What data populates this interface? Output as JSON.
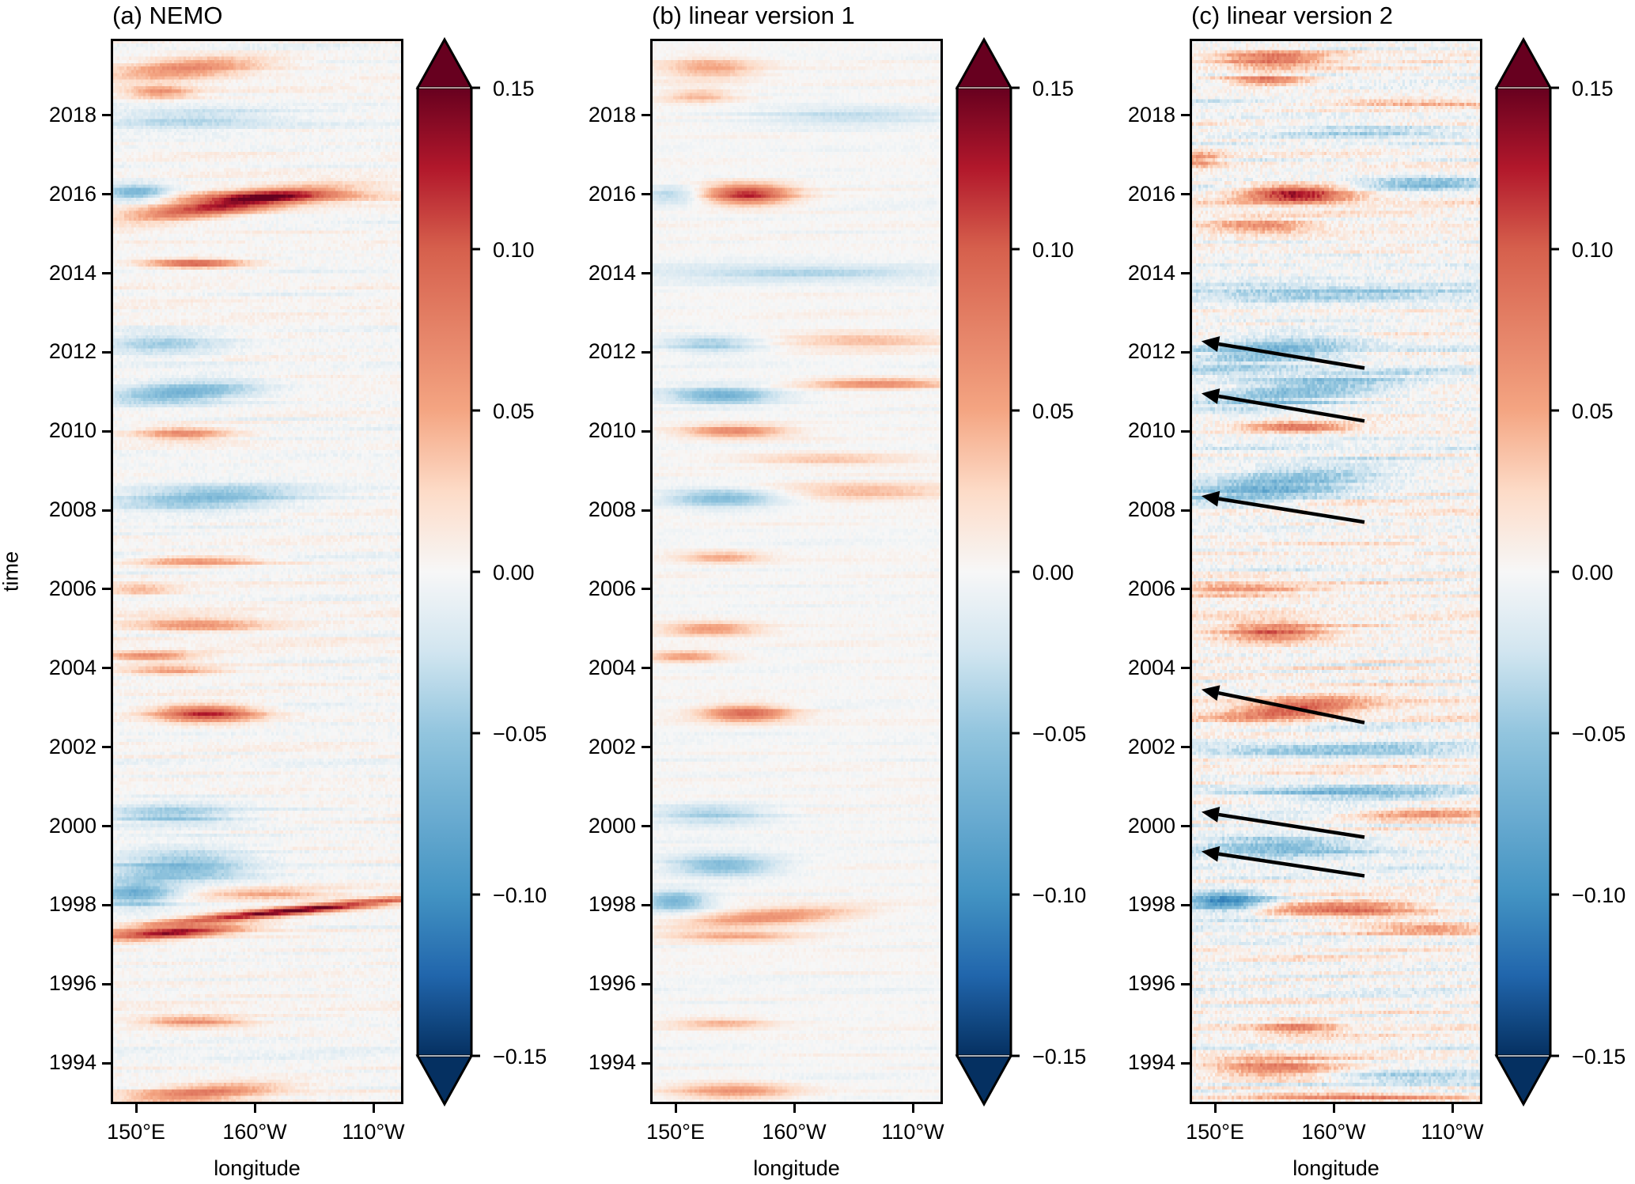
{
  "chart_data": {
    "type": "heatmap",
    "description": "Hovmoller diagrams (time vs longitude) of an anomaly field along the equatorial Pacific",
    "ylabel": "time",
    "xlabel": "longitude",
    "ylim": [
      1993.0,
      2019.9
    ],
    "xlim_deg_east": [
      140,
      262
    ],
    "yticks": [
      1994,
      1996,
      1998,
      2000,
      2002,
      2004,
      2006,
      2008,
      2010,
      2012,
      2014,
      2016,
      2018
    ],
    "ytick_labels": [
      "1994",
      "1996",
      "1998",
      "2000",
      "2002",
      "2004",
      "2006",
      "2008",
      "2010",
      "2012",
      "2014",
      "2016",
      "2018"
    ],
    "xticks_deg_east": [
      150,
      200,
      250
    ],
    "xtick_labels": [
      "150°E",
      "160°W",
      "110°W"
    ],
    "colorbar": {
      "colormap": "RdBu_r",
      "vmin": -0.15,
      "vmax": 0.15,
      "extend": "both",
      "ticks": [
        0.15,
        0.1,
        0.05,
        0.0,
        -0.05,
        -0.1,
        -0.15
      ],
      "tick_labels": [
        "0.15",
        "0.10",
        "0.05",
        "0.00",
        "−0.05",
        "−0.10",
        "−0.15"
      ],
      "stops": [
        [
          -0.15,
          "#053061"
        ],
        [
          -0.125,
          "#2166ac"
        ],
        [
          -0.1,
          "#4393c3"
        ],
        [
          -0.05,
          "#92c5de"
        ],
        [
          -0.025,
          "#d1e5f0"
        ],
        [
          0.0,
          "#f7f7f7"
        ],
        [
          0.025,
          "#fddbc7"
        ],
        [
          0.05,
          "#f4a582"
        ],
        [
          0.1,
          "#d6604d"
        ],
        [
          0.125,
          "#b2182b"
        ],
        [
          0.15,
          "#67001f"
        ]
      ]
    },
    "panels": [
      {
        "id": "a",
        "title": "(a) NEMO",
        "noise": 0.012,
        "seed": 11,
        "features": [
          {
            "year": 2019.2,
            "lon": 172,
            "amp": 0.07,
            "dlon": 22,
            "dyr": 0.18,
            "tilt": 0.004
          },
          {
            "year": 2018.6,
            "lon": 160,
            "amp": 0.06,
            "dlon": 10,
            "dyr": 0.12,
            "tilt": 0.0
          },
          {
            "year": 2017.9,
            "lon": 175,
            "amp": -0.035,
            "dlon": 25,
            "dyr": 0.2,
            "tilt": 0.0
          },
          {
            "year": 2016.05,
            "lon": 150,
            "amp": -0.07,
            "dlon": 10,
            "dyr": 0.15,
            "tilt": 0.0
          },
          {
            "year": 2015.75,
            "lon": 190,
            "amp": 0.13,
            "dlon": 28,
            "dyr": 0.18,
            "tilt": 0.008
          },
          {
            "year": 2015.95,
            "lon": 215,
            "amp": 0.05,
            "dlon": 30,
            "dyr": 0.1,
            "tilt": 0.0
          },
          {
            "year": 2014.25,
            "lon": 175,
            "amp": 0.1,
            "dlon": 14,
            "dyr": 0.08,
            "tilt": 0.0
          },
          {
            "year": 2012.2,
            "lon": 160,
            "amp": -0.04,
            "dlon": 18,
            "dyr": 0.2,
            "tilt": 0.0
          },
          {
            "year": 2011.0,
            "lon": 170,
            "amp": -0.07,
            "dlon": 22,
            "dyr": 0.2,
            "tilt": 0.004
          },
          {
            "year": 2009.95,
            "lon": 170,
            "amp": 0.07,
            "dlon": 14,
            "dyr": 0.12,
            "tilt": 0.0
          },
          {
            "year": 2008.3,
            "lon": 180,
            "amp": -0.06,
            "dlon": 28,
            "dyr": 0.22,
            "tilt": 0.003
          },
          {
            "year": 2006.7,
            "lon": 175,
            "amp": 0.06,
            "dlon": 18,
            "dyr": 0.1,
            "tilt": 0.0
          },
          {
            "year": 2006.0,
            "lon": 152,
            "amp": 0.04,
            "dlon": 10,
            "dyr": 0.12,
            "tilt": 0.0
          },
          {
            "year": 2005.1,
            "lon": 175,
            "amp": 0.06,
            "dlon": 20,
            "dyr": 0.12,
            "tilt": 0.0
          },
          {
            "year": 2004.3,
            "lon": 155,
            "amp": 0.07,
            "dlon": 14,
            "dyr": 0.08,
            "tilt": 0.0
          },
          {
            "year": 2003.95,
            "lon": 165,
            "amp": 0.05,
            "dlon": 14,
            "dyr": 0.1,
            "tilt": 0.0
          },
          {
            "year": 2002.85,
            "lon": 180,
            "amp": 0.12,
            "dlon": 15,
            "dyr": 0.15,
            "tilt": 0.0
          },
          {
            "year": 2000.3,
            "lon": 165,
            "amp": -0.05,
            "dlon": 20,
            "dyr": 0.2,
            "tilt": 0.0
          },
          {
            "year": 1999.0,
            "lon": 170,
            "amp": -0.06,
            "dlon": 20,
            "dyr": 0.3,
            "tilt": 0.0
          },
          {
            "year": 1998.3,
            "lon": 150,
            "amp": -0.07,
            "dlon": 12,
            "dyr": 0.25,
            "tilt": 0.0
          },
          {
            "year": 1997.85,
            "lon": 215,
            "amp": 0.15,
            "dlon": 40,
            "dyr": 0.08,
            "tilt": 0.006
          },
          {
            "year": 1997.3,
            "lon": 165,
            "amp": 0.14,
            "dlon": 20,
            "dyr": 0.1,
            "tilt": 0.004
          },
          {
            "year": 1998.3,
            "lon": 205,
            "amp": 0.05,
            "dlon": 20,
            "dyr": 0.1,
            "tilt": 0.0
          },
          {
            "year": 1995.05,
            "lon": 175,
            "amp": 0.07,
            "dlon": 16,
            "dyr": 0.1,
            "tilt": 0.0
          },
          {
            "year": 1993.25,
            "lon": 178,
            "amp": 0.08,
            "dlon": 22,
            "dyr": 0.15,
            "tilt": 0.004
          }
        ]
      },
      {
        "id": "b",
        "title": "(b) linear version 1",
        "noise": 0.008,
        "seed": 23,
        "features": [
          {
            "year": 2019.2,
            "lon": 165,
            "amp": 0.05,
            "dlon": 14,
            "dyr": 0.2,
            "tilt": 0.0
          },
          {
            "year": 2018.5,
            "lon": 160,
            "amp": 0.04,
            "dlon": 10,
            "dyr": 0.12,
            "tilt": 0.0
          },
          {
            "year": 2018.0,
            "lon": 225,
            "amp": -0.03,
            "dlon": 30,
            "dyr": 0.2,
            "tilt": 0.0
          },
          {
            "year": 2016.0,
            "lon": 150,
            "amp": -0.04,
            "dlon": 10,
            "dyr": 0.15,
            "tilt": 0.0
          },
          {
            "year": 2016.0,
            "lon": 180,
            "amp": 0.12,
            "dlon": 13,
            "dyr": 0.18,
            "tilt": 0.0
          },
          {
            "year": 2014.0,
            "lon": 200,
            "amp": -0.035,
            "dlon": 40,
            "dyr": 0.15,
            "tilt": 0.0
          },
          {
            "year": 2012.2,
            "lon": 165,
            "amp": -0.045,
            "dlon": 15,
            "dyr": 0.15,
            "tilt": 0.0
          },
          {
            "year": 2012.3,
            "lon": 230,
            "amp": 0.04,
            "dlon": 25,
            "dyr": 0.15,
            "tilt": 0.0
          },
          {
            "year": 2011.2,
            "lon": 235,
            "amp": 0.07,
            "dlon": 22,
            "dyr": 0.1,
            "tilt": 0.0
          },
          {
            "year": 2010.9,
            "lon": 170,
            "amp": -0.07,
            "dlon": 16,
            "dyr": 0.15,
            "tilt": 0.0
          },
          {
            "year": 2010.0,
            "lon": 175,
            "amp": 0.07,
            "dlon": 15,
            "dyr": 0.12,
            "tilt": 0.0
          },
          {
            "year": 2009.3,
            "lon": 215,
            "amp": 0.04,
            "dlon": 25,
            "dyr": 0.1,
            "tilt": 0.0
          },
          {
            "year": 2008.3,
            "lon": 170,
            "amp": -0.06,
            "dlon": 18,
            "dyr": 0.18,
            "tilt": 0.0
          },
          {
            "year": 2008.5,
            "lon": 230,
            "amp": 0.04,
            "dlon": 25,
            "dyr": 0.15,
            "tilt": 0.0
          },
          {
            "year": 2006.8,
            "lon": 170,
            "amp": 0.05,
            "dlon": 12,
            "dyr": 0.1,
            "tilt": 0.0
          },
          {
            "year": 2005.0,
            "lon": 165,
            "amp": 0.06,
            "dlon": 14,
            "dyr": 0.12,
            "tilt": 0.0
          },
          {
            "year": 2004.3,
            "lon": 155,
            "amp": 0.06,
            "dlon": 12,
            "dyr": 0.1,
            "tilt": 0.0
          },
          {
            "year": 2002.85,
            "lon": 180,
            "amp": 0.09,
            "dlon": 13,
            "dyr": 0.15,
            "tilt": 0.0
          },
          {
            "year": 2000.3,
            "lon": 165,
            "amp": -0.04,
            "dlon": 18,
            "dyr": 0.2,
            "tilt": 0.0
          },
          {
            "year": 1999.0,
            "lon": 170,
            "amp": -0.06,
            "dlon": 16,
            "dyr": 0.2,
            "tilt": 0.0
          },
          {
            "year": 1998.1,
            "lon": 150,
            "amp": -0.07,
            "dlon": 10,
            "dyr": 0.18,
            "tilt": 0.0
          },
          {
            "year": 1997.7,
            "lon": 190,
            "amp": 0.07,
            "dlon": 25,
            "dyr": 0.15,
            "tilt": 0.004
          },
          {
            "year": 1997.2,
            "lon": 175,
            "amp": 0.05,
            "dlon": 20,
            "dyr": 0.1,
            "tilt": 0.0
          },
          {
            "year": 1995.0,
            "lon": 170,
            "amp": 0.04,
            "dlon": 15,
            "dyr": 0.1,
            "tilt": 0.0
          },
          {
            "year": 1993.3,
            "lon": 175,
            "amp": 0.06,
            "dlon": 18,
            "dyr": 0.15,
            "tilt": 0.0
          }
        ]
      },
      {
        "id": "c",
        "title": "(c) linear version 2",
        "noise": 0.025,
        "seed": 37,
        "features": [
          {
            "year": 2019.4,
            "lon": 175,
            "amp": 0.08,
            "dlon": 15,
            "dyr": 0.15,
            "tilt": 0.0
          },
          {
            "year": 2018.9,
            "lon": 172,
            "amp": 0.08,
            "dlon": 12,
            "dyr": 0.1,
            "tilt": 0.0
          },
          {
            "year": 2018.3,
            "lon": 240,
            "amp": 0.06,
            "dlon": 30,
            "dyr": 0.08,
            "tilt": 0.0
          },
          {
            "year": 2017.6,
            "lon": 215,
            "amp": -0.04,
            "dlon": 25,
            "dyr": 0.12,
            "tilt": 0.0
          },
          {
            "year": 2016.9,
            "lon": 143,
            "amp": 0.06,
            "dlon": 8,
            "dyr": 0.15,
            "tilt": 0.0
          },
          {
            "year": 2016.0,
            "lon": 185,
            "amp": 0.14,
            "dlon": 16,
            "dyr": 0.15,
            "tilt": 0.0
          },
          {
            "year": 2016.3,
            "lon": 240,
            "amp": -0.06,
            "dlon": 20,
            "dyr": 0.1,
            "tilt": 0.0
          },
          {
            "year": 2015.2,
            "lon": 170,
            "amp": 0.06,
            "dlon": 15,
            "dyr": 0.15,
            "tilt": 0.0
          },
          {
            "year": 2013.5,
            "lon": 200,
            "amp": -0.05,
            "dlon": 45,
            "dyr": 0.12,
            "tilt": 0.0
          },
          {
            "year": 2012.0,
            "lon": 175,
            "amp": -0.06,
            "dlon": 25,
            "dyr": 0.3,
            "tilt": 0.006
          },
          {
            "year": 2011.0,
            "lon": 185,
            "amp": -0.06,
            "dlon": 30,
            "dyr": 0.25,
            "tilt": 0.006
          },
          {
            "year": 2010.1,
            "lon": 185,
            "amp": 0.09,
            "dlon": 15,
            "dyr": 0.08,
            "tilt": 0.0
          },
          {
            "year": 2008.6,
            "lon": 175,
            "amp": -0.07,
            "dlon": 30,
            "dyr": 0.3,
            "tilt": 0.006
          },
          {
            "year": 2006.0,
            "lon": 160,
            "amp": 0.05,
            "dlon": 20,
            "dyr": 0.15,
            "tilt": 0.0
          },
          {
            "year": 2004.9,
            "lon": 175,
            "amp": 0.08,
            "dlon": 15,
            "dyr": 0.2,
            "tilt": 0.0
          },
          {
            "year": 2003.0,
            "lon": 185,
            "amp": 0.09,
            "dlon": 20,
            "dyr": 0.2,
            "tilt": 0.006
          },
          {
            "year": 2001.9,
            "lon": 200,
            "amp": -0.06,
            "dlon": 40,
            "dyr": 0.1,
            "tilt": 0.0
          },
          {
            "year": 2000.8,
            "lon": 210,
            "amp": -0.05,
            "dlon": 40,
            "dyr": 0.15,
            "tilt": 0.0
          },
          {
            "year": 2000.3,
            "lon": 240,
            "amp": 0.07,
            "dlon": 25,
            "dyr": 0.12,
            "tilt": 0.0
          },
          {
            "year": 1999.5,
            "lon": 175,
            "amp": -0.06,
            "dlon": 25,
            "dyr": 0.2,
            "tilt": 0.0
          },
          {
            "year": 1998.1,
            "lon": 155,
            "amp": -0.1,
            "dlon": 12,
            "dyr": 0.18,
            "tilt": 0.0
          },
          {
            "year": 1997.9,
            "lon": 205,
            "amp": 0.09,
            "dlon": 25,
            "dyr": 0.15,
            "tilt": 0.0
          },
          {
            "year": 1997.4,
            "lon": 240,
            "amp": 0.08,
            "dlon": 20,
            "dyr": 0.1,
            "tilt": 0.0
          },
          {
            "year": 1994.9,
            "lon": 185,
            "amp": 0.07,
            "dlon": 12,
            "dyr": 0.12,
            "tilt": 0.0
          },
          {
            "year": 1993.9,
            "lon": 175,
            "amp": 0.08,
            "dlon": 20,
            "dyr": 0.2,
            "tilt": 0.0
          },
          {
            "year": 1993.6,
            "lon": 230,
            "amp": -0.04,
            "dlon": 30,
            "dyr": 0.12,
            "tilt": 0.0
          },
          {
            "year": 1993.15,
            "lon": 210,
            "amp": 0.06,
            "dlon": 40,
            "dyr": 0.08,
            "tilt": 0.0
          }
        ],
        "annotations": [
          {
            "type": "arrow",
            "from": {
              "lon": 213,
              "year": 2011.6
            },
            "to": {
              "lon": 144.3,
              "year": 2012.28
            }
          },
          {
            "type": "arrow",
            "from": {
              "lon": 213,
              "year": 2010.26
            },
            "to": {
              "lon": 144.3,
              "year": 2010.96
            }
          },
          {
            "type": "arrow",
            "from": {
              "lon": 213,
              "year": 2007.7
            },
            "to": {
              "lon": 144.3,
              "year": 2008.36
            }
          },
          {
            "type": "arrow",
            "from": {
              "lon": 213,
              "year": 2002.62
            },
            "to": {
              "lon": 144.3,
              "year": 2003.46
            }
          },
          {
            "type": "arrow",
            "from": {
              "lon": 213,
              "year": 1999.72
            },
            "to": {
              "lon": 144.3,
              "year": 2000.36
            }
          },
          {
            "type": "arrow",
            "from": {
              "lon": 213,
              "year": 1998.74
            },
            "to": {
              "lon": 144.3,
              "year": 1999.36
            }
          }
        ]
      }
    ]
  }
}
